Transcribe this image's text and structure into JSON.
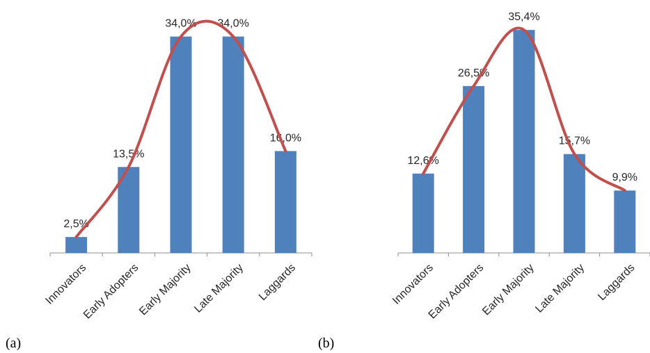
{
  "colors": {
    "bar": "#4f81bd",
    "curve": "#c0504d",
    "axis": "#8c8c8c",
    "text": "#262626"
  },
  "chart_data": [
    {
      "type": "bar",
      "panel_label": "(a)",
      "categories": [
        "Innovators",
        "Early Adopters",
        "Early Majority",
        "Late Majority",
        "Laggards"
      ],
      "values": [
        2.5,
        13.5,
        34.0,
        34.0,
        16.0
      ],
      "data_labels": [
        "2,5%",
        "13,5%",
        "34,0%",
        "34,0%",
        "16,0%"
      ],
      "overlay": "smoothed line through bar tops",
      "ylim": [
        0,
        34.5
      ],
      "grid": false,
      "legend": "none",
      "title": "",
      "xlabel": "",
      "ylabel": ""
    },
    {
      "type": "bar",
      "panel_label": "(b)",
      "categories": [
        "Innovators",
        "Early Adopters",
        "Early Majority",
        "Late Majority",
        "Laggards"
      ],
      "values": [
        12.6,
        26.5,
        35.4,
        15.7,
        9.9
      ],
      "data_labels": [
        "12,6%",
        "26,5%",
        "35,4%",
        "15,7%",
        "9,9%"
      ],
      "overlay": "smoothed line through bar tops",
      "ylim": [
        0,
        36.4
      ],
      "grid": false,
      "legend": "none",
      "title": "",
      "xlabel": "",
      "ylabel": ""
    }
  ]
}
